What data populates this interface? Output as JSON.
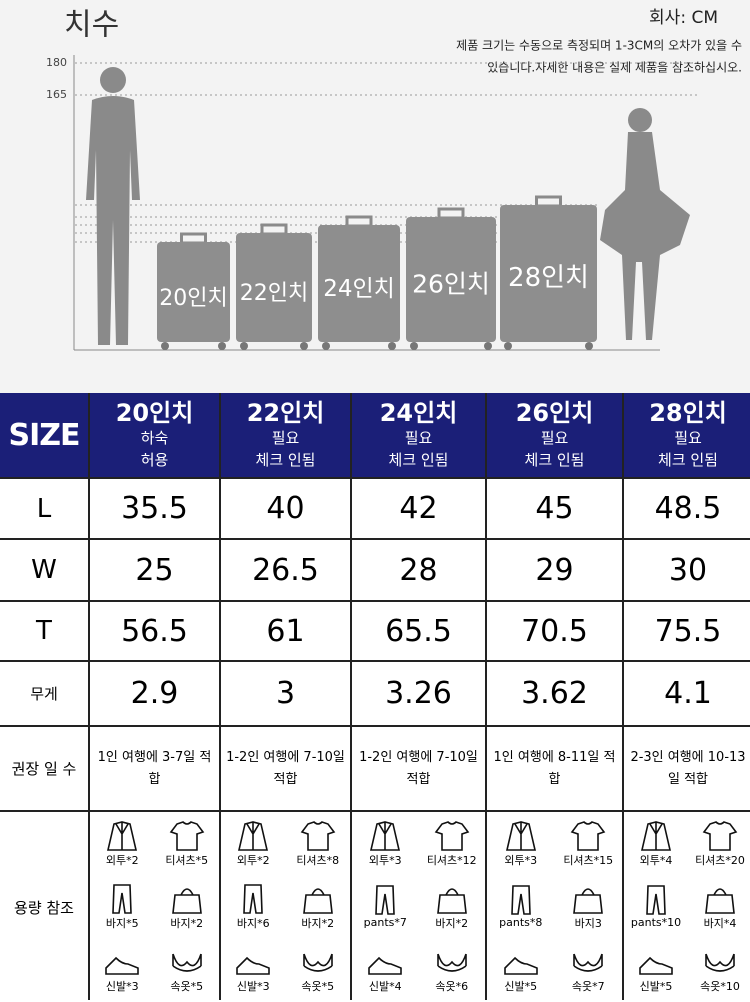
{
  "header": {
    "title": "치수",
    "unit": "회사: CM",
    "note": [
      "제품 크기는 수동으로 측정되며 1-3CM의 오차가 있을 수",
      "있습니다.자세한 내용은 실제 제품을 참조하십시오."
    ]
  },
  "figure": {
    "scale": [
      "180",
      "165"
    ],
    "suitcases": [
      "20인치",
      "22인치",
      "24인치",
      "26인치",
      "28인치"
    ]
  },
  "table": {
    "corner": "SIZE",
    "columns": [
      {
        "size": "20인치",
        "note": [
          "하숙",
          "허용"
        ]
      },
      {
        "size": "22인치",
        "note": [
          "필요",
          "체크 인됨"
        ]
      },
      {
        "size": "24인치",
        "note": [
          "필요",
          "체크 인됨"
        ]
      },
      {
        "size": "26인치",
        "note": [
          "필요",
          "체크 인됨"
        ]
      },
      {
        "size": "28인치",
        "note": [
          "필요",
          "체크 인됨"
        ]
      }
    ],
    "rows": [
      {
        "label": "L",
        "cells": [
          "35.5",
          "40",
          "42",
          "45",
          "48.5"
        ]
      },
      {
        "label": "W",
        "cells": [
          "25",
          "26.5",
          "28",
          "29",
          "30"
        ]
      },
      {
        "label": "T",
        "cells": [
          "56.5",
          "61",
          "65.5",
          "70.5",
          "75.5"
        ]
      },
      {
        "label": "무게",
        "cells": [
          "2.9",
          "3",
          "3.26",
          "3.62",
          "4.1"
        ]
      },
      {
        "label": "권장 일 수",
        "cells": [
          "1인 여행에 3-7일 적합",
          "1-2인 여행에 7-10일 적합",
          "1-2인 여행에 7-10일 적합",
          "1인 여행에 8-11일 적합",
          "2-3인 여행에 10-13일 적합"
        ]
      }
    ],
    "capacity": {
      "label": "용량 참조",
      "cells": [
        [
          "외투*2",
          "티셔츠*5",
          "바지*5",
          "바지*2",
          "신발*3",
          "속옷*5"
        ],
        [
          "외투*2",
          "티셔츠*8",
          "바지*6",
          "바지*2",
          "신발*3",
          "속옷*5"
        ],
        [
          "외투*3",
          "티셔츠*12",
          "pants*7",
          "바지*2",
          "신발*4",
          "속옷*6"
        ],
        [
          "외투*3",
          "티셔츠*15",
          "pants*8",
          "바지3",
          "신발*5",
          "속옷*7"
        ],
        [
          "외투*4",
          "티셔츠*20",
          "pants*10",
          "바지*4",
          "신발*5",
          "속옷*10"
        ]
      ]
    }
  }
}
